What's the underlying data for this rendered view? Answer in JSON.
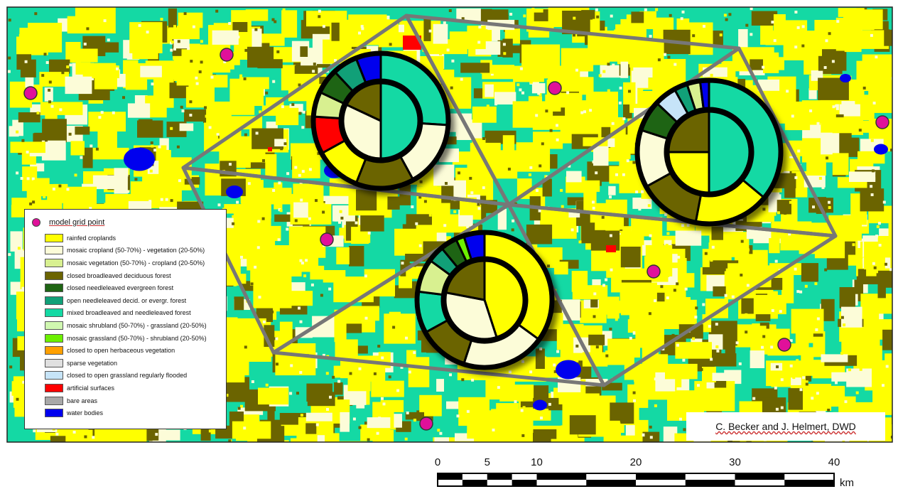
{
  "legend": {
    "title": "model grid point",
    "marker_color": "#e0109a",
    "items": [
      {
        "label": "rainfed croplands",
        "color": "#ffff00"
      },
      {
        "label": "mosaic cropland (50-70%) - vegetation (20-50%)",
        "color": "#fcfcd8"
      },
      {
        "label": "mosaic vegetation (50-70%) - cropland (20-50%)",
        "color": "#d8f090"
      },
      {
        "label": "closed broadleaved deciduous forest",
        "color": "#6b6400"
      },
      {
        "label": "closed needleleaved evergreen forest",
        "color": "#1e6414"
      },
      {
        "label": "open needleleaved decid. or evergr. forest",
        "color": "#11a078"
      },
      {
        "label": "mixed broadleaved and needleleaved forest",
        "color": "#14d9a4"
      },
      {
        "label": "mosaic shrubland (50-70%) - grassland (20-50%)",
        "color": "#d0f8b0"
      },
      {
        "label": "mosaic grassland (50-70%) - shrubland (20-50%)",
        "color": "#6cf000"
      },
      {
        "label": "closed to open herbaceous vegetation",
        "color": "#ffa000"
      },
      {
        "label": "sparse vegetation",
        "color": "#e0e0e0"
      },
      {
        "label": "closed to open grassland regularly flooded",
        "color": "#c6e4f8"
      },
      {
        "label": "artificial surfaces",
        "color": "#ff0000"
      },
      {
        "label": "bare areas",
        "color": "#a8a8a8"
      },
      {
        "label": "water bodies",
        "color": "#0000ee"
      }
    ]
  },
  "credit": "C. Becker and J. Helmert, DWD",
  "scale_bar": {
    "ticks": [
      "0",
      "5",
      "10",
      "20",
      "30",
      "40"
    ],
    "unit": "km"
  },
  "pies": [
    {
      "name": "pie-upper-left",
      "outer": [
        {
          "cls": "mixed",
          "v": 26
        },
        {
          "cls": "cropland-mosaic",
          "v": 16
        },
        {
          "cls": "broadleaved",
          "v": 14
        },
        {
          "cls": "rainfed",
          "v": 11
        },
        {
          "cls": "artificial",
          "v": 9
        },
        {
          "cls": "veg-mosaic",
          "v": 6
        },
        {
          "cls": "needleleaved",
          "v": 6
        },
        {
          "cls": "open-needle",
          "v": 6
        },
        {
          "cls": "water",
          "v": 6
        }
      ],
      "inner": [
        {
          "cls": "mixed",
          "v": 50
        },
        {
          "cls": "cropland-mosaic",
          "v": 32
        },
        {
          "cls": "broadleaved",
          "v": 18
        }
      ]
    },
    {
      "name": "pie-right",
      "outer": [
        {
          "cls": "mixed",
          "v": 36
        },
        {
          "cls": "rainfed",
          "v": 17
        },
        {
          "cls": "broadleaved",
          "v": 14
        },
        {
          "cls": "cropland-mosaic",
          "v": 13
        },
        {
          "cls": "needleleaved",
          "v": 7
        },
        {
          "cls": "flooded-grass",
          "v": 5
        },
        {
          "cls": "open-needle",
          "v": 3
        },
        {
          "cls": "veg-mosaic",
          "v": 3
        },
        {
          "cls": "water",
          "v": 2
        }
      ],
      "inner": [
        {
          "cls": "mixed",
          "v": 50
        },
        {
          "cls": "rainfed",
          "v": 25
        },
        {
          "cls": "broadleaved",
          "v": 25
        }
      ]
    },
    {
      "name": "pie-lower",
      "outer": [
        {
          "cls": "rainfed",
          "v": 35
        },
        {
          "cls": "cropland-mosaic",
          "v": 20
        },
        {
          "cls": "broadleaved",
          "v": 12
        },
        {
          "cls": "mixed",
          "v": 10
        },
        {
          "cls": "veg-mosaic",
          "v": 8
        },
        {
          "cls": "open-needle",
          "v": 4
        },
        {
          "cls": "needleleaved",
          "v": 4
        },
        {
          "cls": "grass-mosaic",
          "v": 2
        },
        {
          "cls": "water",
          "v": 5
        }
      ],
      "inner": [
        {
          "cls": "rainfed",
          "v": 45
        },
        {
          "cls": "cropland-mosaic",
          "v": 33
        },
        {
          "cls": "broadleaved",
          "v": 22
        }
      ]
    }
  ]
}
